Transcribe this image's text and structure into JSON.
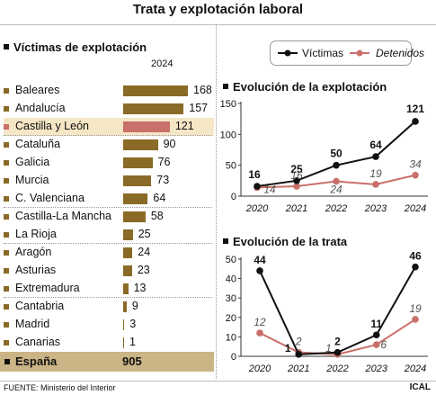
{
  "title": "Trata y explotación laboral",
  "left_section": {
    "heading": "Víctimas de explotación",
    "year": "2024",
    "rows": [
      {
        "name": "Baleares",
        "value": 168
      },
      {
        "name": "Andalucía",
        "value": 157
      },
      {
        "name": "Castilla y León",
        "value": 121,
        "highlight": true
      },
      {
        "name": "Cataluña",
        "value": 90
      },
      {
        "name": "Galicia",
        "value": 76
      },
      {
        "name": "Murcia",
        "value": 73
      },
      {
        "name": "C. Valenciana",
        "value": 64
      },
      {
        "name": "Castilla-La Mancha",
        "value": 58
      },
      {
        "name": "La Rioja",
        "value": 25
      },
      {
        "name": "Aragón",
        "value": 24
      },
      {
        "name": "Asturias",
        "value": 23
      },
      {
        "name": "Extremadura",
        "value": 13
      },
      {
        "name": "Cantabria",
        "value": 9
      },
      {
        "name": "Madrid",
        "value": 3
      },
      {
        "name": "Canarias",
        "value": 1
      }
    ],
    "total": {
      "name": "España",
      "value": "905"
    }
  },
  "legend": {
    "victimas": "Víctimas",
    "detenidos": "Detenidos"
  },
  "colors": {
    "bar": "#8a6a27",
    "highlight_bar": "#c9706a",
    "highlight_row": "#f5e6c6",
    "total_row": "#cbb485",
    "victimas": "#111111",
    "detenidos": "#c9706a"
  },
  "source": "FUENTE: Ministerio del Interior",
  "brand": "ICAL",
  "chart_data": [
    {
      "type": "bar",
      "title": "Víctimas de explotación",
      "subtitle": "2024",
      "categories": [
        "Baleares",
        "Andalucía",
        "Castilla y León",
        "Cataluña",
        "Galicia",
        "Murcia",
        "C. Valenciana",
        "Castilla-La Mancha",
        "La Rioja",
        "Aragón",
        "Asturias",
        "Extremadura",
        "Cantabria",
        "Madrid",
        "Canarias"
      ],
      "values": [
        168,
        157,
        121,
        90,
        76,
        73,
        64,
        58,
        25,
        24,
        23,
        13,
        9,
        3,
        1
      ],
      "total": {
        "label": "España",
        "value": 905
      }
    },
    {
      "type": "line",
      "title": "Evolución de la explotación",
      "x": [
        "2020",
        "2021",
        "2022",
        "2023",
        "2024"
      ],
      "ylim": [
        0,
        150
      ],
      "yticks": [
        0,
        50,
        100,
        150
      ],
      "grid": false,
      "series": [
        {
          "name": "Víctimas",
          "values": [
            16,
            25,
            50,
            64,
            121
          ]
        },
        {
          "name": "Detenidos",
          "values": [
            14,
            16,
            24,
            19,
            34
          ]
        }
      ]
    },
    {
      "type": "line",
      "title": "Evolución de la trata",
      "x": [
        "2020",
        "2021",
        "2022",
        "2023",
        "2024"
      ],
      "ylim": [
        0,
        50
      ],
      "yticks": [
        0,
        10,
        20,
        30,
        40,
        50
      ],
      "grid": false,
      "series": [
        {
          "name": "Víctimas",
          "values": [
            44,
            1,
            2,
            11,
            46
          ]
        },
        {
          "name": "Detenidos",
          "values": [
            12,
            2,
            1,
            6,
            19
          ]
        }
      ]
    }
  ]
}
